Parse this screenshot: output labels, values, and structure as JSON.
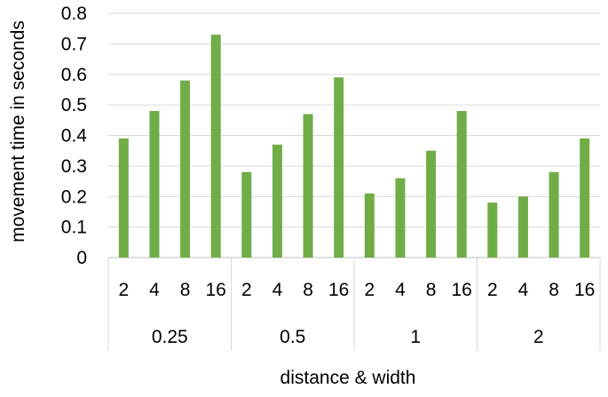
{
  "chart_data": {
    "type": "bar",
    "xlabel": "distance & width",
    "ylabel": "movement time in seconds",
    "ylim": [
      0,
      0.8
    ],
    "yticks": [
      "0",
      "0.1",
      "0.2",
      "0.3",
      "0.4",
      "0.5",
      "0.6",
      "0.7",
      "0.8"
    ],
    "grid": true,
    "legend": "none",
    "bar_color": "#70ad47",
    "grid_color": "#d9d9d9",
    "groups": [
      {
        "label": "0.25",
        "categories": [
          "2",
          "4",
          "8",
          "16"
        ],
        "values": [
          0.39,
          0.48,
          0.58,
          0.73
        ]
      },
      {
        "label": "0.5",
        "categories": [
          "2",
          "4",
          "8",
          "16"
        ],
        "values": [
          0.28,
          0.37,
          0.47,
          0.59
        ]
      },
      {
        "label": "1",
        "categories": [
          "2",
          "4",
          "8",
          "16"
        ],
        "values": [
          0.21,
          0.26,
          0.35,
          0.48
        ]
      },
      {
        "label": "2",
        "categories": [
          "2",
          "4",
          "8",
          "16"
        ],
        "values": [
          0.18,
          0.2,
          0.28,
          0.39
        ]
      }
    ]
  }
}
